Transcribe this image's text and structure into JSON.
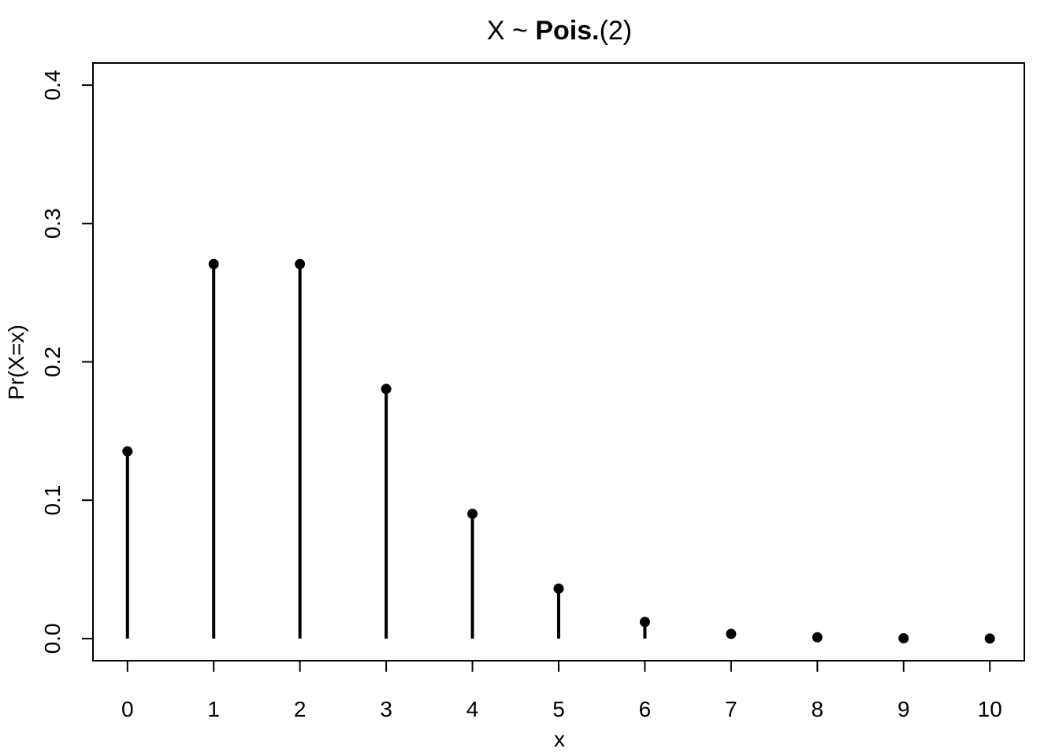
{
  "chart_data": {
    "type": "lollipop",
    "title_parts": {
      "prefix": "X ~ ",
      "bold": "Pois.",
      "suffix": "(2)"
    },
    "xlabel": "x",
    "ylabel": "Pr(X=x)",
    "x": [
      0,
      1,
      2,
      3,
      4,
      5,
      6,
      7,
      8,
      9,
      10
    ],
    "values": [
      0.1353,
      0.2707,
      0.2707,
      0.1804,
      0.0902,
      0.0361,
      0.012,
      0.0034,
      0.0009,
      0.0002,
      4e-05
    ],
    "xticks": [
      "0",
      "1",
      "2",
      "3",
      "4",
      "5",
      "6",
      "7",
      "8",
      "9",
      "10"
    ],
    "yticks": [
      "0.0",
      "0.1",
      "0.2",
      "0.3",
      "0.4"
    ],
    "xlim": [
      -0.4,
      10.4
    ],
    "ylim": [
      -0.016,
      0.416
    ],
    "grid": false,
    "legend": "none",
    "color": "#000000"
  }
}
